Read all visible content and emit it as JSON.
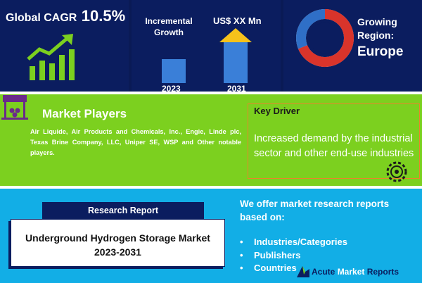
{
  "top": {
    "cagr_label": "Global CAGR",
    "cagr_value": "10.5%",
    "incremental_growth": "Incremental Growth",
    "market_value": "US$ XX Mn",
    "year_start": "2023",
    "year_end": "2031",
    "growing_region_label": "Growing Region:",
    "growing_region_value": "Europe"
  },
  "market_players": {
    "title": "Market Players",
    "text": "Air Liquide, Air Products and Chemicals, Inc., Engie, Linde plc, Texas Brine Company, LLC, Uniper SE, WSP and Other notable players."
  },
  "key_driver": {
    "title": "Key Driver",
    "text": "Increased demand by the industrial sector and other end-use industries"
  },
  "research": {
    "tab_label": "Research Report",
    "report_title": "Underground Hydrogen Storage Market 2023-2031"
  },
  "offer": {
    "heading": "We offer market research reports based on:",
    "items": [
      "Industries/Categories",
      "Publishers",
      "Countries"
    ]
  },
  "logo": {
    "part1": "Acute ",
    "part2": "Market",
    "part3": " Reports"
  },
  "colors": {
    "navy": "#0b1d5f",
    "green": "#7cd01f",
    "blue": "#12aee6",
    "orange": "#e8852a",
    "bar": "#3a7fd8"
  }
}
